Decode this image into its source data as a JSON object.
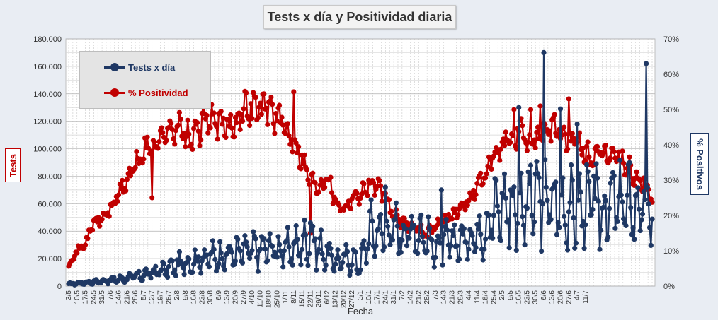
{
  "chart_data": {
    "type": "line",
    "title": "Tests x día y Positividad diaria",
    "xlabel": "Fecha",
    "ylabel_left": "Tests",
    "ylabel_right": "% Positivos",
    "ylim_left": [
      0,
      180000
    ],
    "ylim_right": [
      0,
      70
    ],
    "left_ticks": [
      "0",
      "20.000",
      "40.000",
      "60.000",
      "80.000",
      "100.000",
      "120.000",
      "140.000",
      "160.000",
      "180.000"
    ],
    "right_ticks": [
      "0%",
      "10%",
      "20%",
      "30%",
      "40%",
      "50%",
      "60%",
      "70%"
    ],
    "x_tick_labels": [
      "3/5",
      "10/5",
      "17/5",
      "24/5",
      "31/5",
      "7/6",
      "14/6",
      "21/6",
      "28/6",
      "5/7",
      "12/7",
      "19/7",
      "26/7",
      "2/8",
      "9/8",
      "16/8",
      "23/8",
      "30/8",
      "6/9",
      "13/9",
      "20/9",
      "27/9",
      "4/10",
      "11/10",
      "18/10",
      "25/10",
      "1/11",
      "8/11",
      "15/11",
      "22/11",
      "29/11",
      "6/12",
      "13/12",
      "20/12",
      "27/12",
      "3/1",
      "10/1",
      "17/1",
      "24/1",
      "31/1",
      "7/2",
      "14/2",
      "21/2",
      "28/2",
      "7/3",
      "14/3",
      "21/3",
      "28/3",
      "4/4",
      "11/4",
      "18/4",
      "25/4",
      "2/5",
      "9/5",
      "16/5",
      "23/5",
      "30/5",
      "6/6",
      "13/6",
      "20/6",
      "27/6",
      "4/7",
      "11/7"
    ],
    "grid": true,
    "legend_position": "top-left",
    "colors": {
      "tests": "#1f3864",
      "positividad": "#c00000"
    },
    "series": [
      {
        "name": "Tests x día",
        "axis": "left",
        "key_points": [
          [
            0,
            1500
          ],
          [
            14,
            2500
          ],
          [
            28,
            3500
          ],
          [
            42,
            5000
          ],
          [
            56,
            7000
          ],
          [
            70,
            9500
          ],
          [
            84,
            13000
          ],
          [
            98,
            17000
          ],
          [
            112,
            20000
          ],
          [
            126,
            22000
          ],
          [
            140,
            24000
          ],
          [
            154,
            26000
          ],
          [
            168,
            28000
          ],
          [
            182,
            26000
          ],
          [
            196,
            30000
          ],
          [
            203,
            35000
          ],
          [
            210,
            28000
          ],
          [
            224,
            18000
          ],
          [
            238,
            20000
          ],
          [
            245,
            15000
          ],
          [
            252,
            40000
          ],
          [
            266,
            40000
          ],
          [
            280,
            40000
          ],
          [
            294,
            40000
          ],
          [
            308,
            28000
          ],
          [
            322,
            32000
          ],
          [
            336,
            35000
          ],
          [
            350,
            45000
          ],
          [
            364,
            60000
          ],
          [
            378,
            55000
          ],
          [
            392,
            65000
          ],
          [
            406,
            60000
          ],
          [
            420,
            55000
          ],
          [
            434,
            58000
          ],
          [
            448,
            55000
          ],
          [
            462,
            60000
          ],
          [
            476,
            58000
          ],
          [
            483,
            55000
          ],
          [
            490,
            55000
          ]
        ],
        "spikes": [
          [
            203,
            46000
          ],
          [
            266,
            72000
          ],
          [
            313,
            70000
          ],
          [
            343,
            45000
          ],
          [
            371,
            70000
          ],
          [
            378,
            130000
          ],
          [
            399,
            170000
          ],
          [
            413,
            129000
          ],
          [
            427,
            118000
          ],
          [
            441,
            80000
          ],
          [
            455,
            75000
          ],
          [
            485,
            162000
          ]
        ]
      },
      {
        "name": "% Positividad",
        "axis": "right",
        "key_points": [
          [
            0,
            6
          ],
          [
            7,
            10
          ],
          [
            14,
            12
          ],
          [
            21,
            18
          ],
          [
            28,
            19
          ],
          [
            35,
            22
          ],
          [
            42,
            26
          ],
          [
            49,
            30
          ],
          [
            56,
            34
          ],
          [
            63,
            38
          ],
          [
            70,
            40
          ],
          [
            77,
            42
          ],
          [
            84,
            44
          ],
          [
            91,
            46
          ],
          [
            98,
            42
          ],
          [
            105,
            42
          ],
          [
            112,
            46
          ],
          [
            119,
            48
          ],
          [
            126,
            46
          ],
          [
            133,
            45
          ],
          [
            140,
            47
          ],
          [
            147,
            50
          ],
          [
            154,
            51
          ],
          [
            161,
            50
          ],
          [
            168,
            51
          ],
          [
            175,
            48
          ],
          [
            182,
            44
          ],
          [
            189,
            42
          ],
          [
            196,
            36
          ],
          [
            203,
            30
          ],
          [
            210,
            28
          ],
          [
            217,
            32
          ],
          [
            224,
            24
          ],
          [
            231,
            22
          ],
          [
            238,
            25
          ],
          [
            245,
            26
          ],
          [
            252,
            29
          ],
          [
            259,
            28
          ],
          [
            266,
            25
          ],
          [
            273,
            20
          ],
          [
            280,
            18
          ],
          [
            287,
            17
          ],
          [
            294,
            16
          ],
          [
            301,
            15
          ],
          [
            308,
            17
          ],
          [
            315,
            19
          ],
          [
            322,
            20
          ],
          [
            329,
            22
          ],
          [
            336,
            24
          ],
          [
            343,
            28
          ],
          [
            350,
            32
          ],
          [
            357,
            36
          ],
          [
            364,
            39
          ],
          [
            371,
            42
          ],
          [
            378,
            44
          ],
          [
            385,
            40
          ],
          [
            392,
            42
          ],
          [
            399,
            44
          ],
          [
            406,
            45
          ],
          [
            413,
            43
          ],
          [
            420,
            42
          ],
          [
            427,
            40
          ],
          [
            434,
            38
          ],
          [
            441,
            36
          ],
          [
            448,
            37
          ],
          [
            455,
            38
          ],
          [
            462,
            36
          ],
          [
            469,
            34
          ],
          [
            476,
            30
          ],
          [
            483,
            29
          ],
          [
            490,
            25
          ]
        ],
        "spikes": [
          [
            70,
            25
          ],
          [
            122,
            49
          ],
          [
            189,
            55
          ],
          [
            203,
            15
          ],
          [
            374,
            50
          ],
          [
            388,
            50
          ],
          [
            396,
            51
          ],
          [
            420,
            53
          ]
        ]
      }
    ]
  }
}
